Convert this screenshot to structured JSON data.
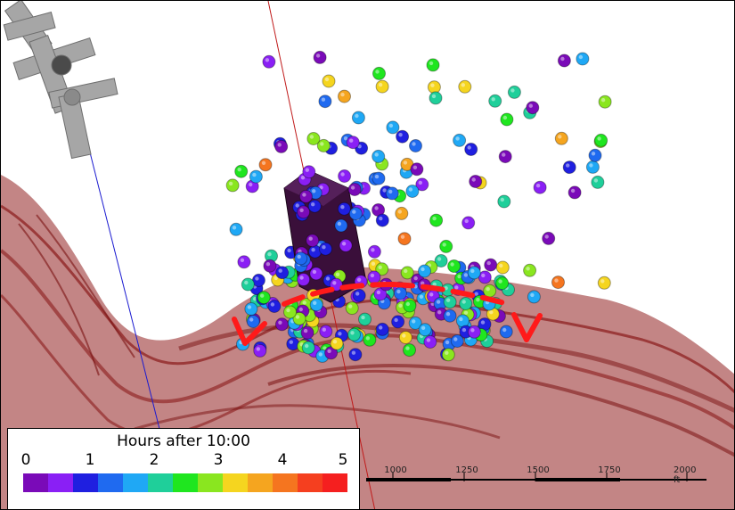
{
  "legend": {
    "title": "Hours after 10:00",
    "ticks": [
      "0",
      "1",
      "2",
      "3",
      "4",
      "5"
    ],
    "colors": [
      "#7a0ab8",
      "#8a1ff5",
      "#1f1fe0",
      "#1f6af0",
      "#1fa8f5",
      "#1fcf9a",
      "#1fe61f",
      "#8ae61f",
      "#f5d51f",
      "#f5a51f",
      "#f5751f",
      "#f53f1f",
      "#f51f1f"
    ]
  },
  "scale_bar": {
    "labels": [
      "1000",
      "1250",
      "1500",
      "1750",
      "2000 ft"
    ]
  },
  "colors": {
    "surface": "#b86a6a",
    "surface_dark": "#8a1a1a",
    "well_casing": "#3a0f3a",
    "arrow": "#ff1a1a",
    "pump_unit": "#a9a9a9"
  }
}
